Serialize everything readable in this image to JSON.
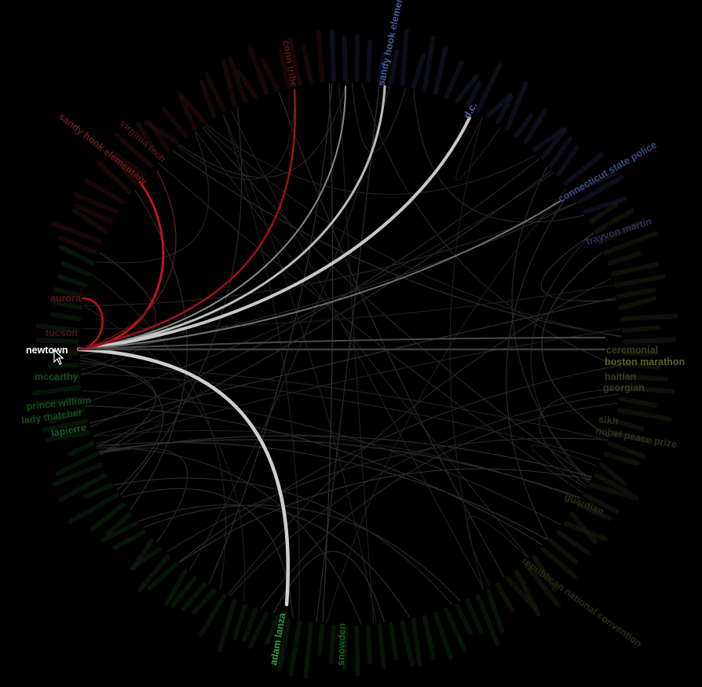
{
  "diagram": {
    "type": "hierarchical-edge-bundling",
    "hovered_node": "newtown",
    "colors": {
      "background": "#000000",
      "hovered_label": "#ffffff",
      "link_highlight": "#cfcfcf",
      "link_red": "#c0141c",
      "faint_link": "#2a2a2a",
      "red_group": "#7a1e1e",
      "blue_group": "#4a5a9a",
      "olive_group": "#8a8a4a",
      "green_group": "#2f9a3a"
    },
    "nodes": [
      {
        "label": "adam lanza",
        "group": "green",
        "state": "linked"
      },
      {
        "label": "snowden",
        "group": "green",
        "state": "faint"
      },
      {
        "label": "sandy hook elementary",
        "group": "red",
        "state": "linked-red"
      },
      {
        "label": "conn tribe",
        "group": "red",
        "state": "linked-red"
      },
      {
        "label": "virginia tech",
        "group": "red",
        "state": "faint"
      },
      {
        "label": "aurora",
        "group": "red",
        "state": "linked-red"
      },
      {
        "label": "tucson",
        "group": "red",
        "state": "faint"
      },
      {
        "label": "sandy hook elementary",
        "group": "blue",
        "state": "linked"
      },
      {
        "label": "d.c.",
        "group": "blue",
        "state": "linked"
      },
      {
        "label": "connecticut state police",
        "group": "blue",
        "state": "linked"
      },
      {
        "label": "trayvon martin",
        "group": "blue",
        "state": "faint"
      },
      {
        "label": "ceremonial",
        "group": "olive",
        "state": "linked"
      },
      {
        "label": "boston marathon",
        "group": "olive",
        "state": "linked"
      },
      {
        "label": "haitian",
        "group": "olive",
        "state": "faint"
      },
      {
        "label": "georgian",
        "group": "olive",
        "state": "faint"
      },
      {
        "label": "sikh",
        "group": "olive",
        "state": "faint"
      },
      {
        "label": "nobel peace prize",
        "group": "olive",
        "state": "faint"
      },
      {
        "label": "guardian",
        "group": "olive",
        "state": "faint"
      },
      {
        "label": "republican national convention",
        "group": "olive",
        "state": "faint"
      },
      {
        "label": "lapierre",
        "group": "green",
        "state": "faint"
      },
      {
        "label": "lady thatcher",
        "group": "green",
        "state": "faint"
      },
      {
        "label": "mccarthy",
        "group": "green",
        "state": "faint"
      },
      {
        "label": "prince william",
        "group": "green",
        "state": "faint"
      }
    ]
  }
}
